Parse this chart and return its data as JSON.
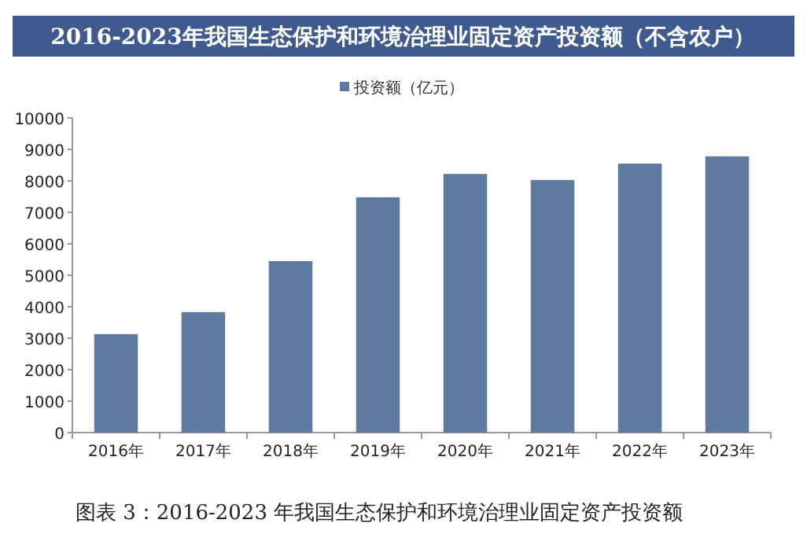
{
  "chart_data": {
    "type": "bar",
    "title": "2016-2023年我国生态保护和环境治理业固定资产投资额（不含农户）",
    "categories": [
      "2016年",
      "2017年",
      "2018年",
      "2019年",
      "2020年",
      "2021年",
      "2022年",
      "2023年"
    ],
    "series": [
      {
        "name": "投资额（亿元）",
        "color": "#5f7aa0",
        "values": [
          3130,
          3830,
          5450,
          7480,
          8220,
          8030,
          8550,
          8780
        ]
      }
    ],
    "ylim": [
      0,
      10000
    ],
    "yticks": [
      0,
      1000,
      2000,
      3000,
      4000,
      5000,
      6000,
      7000,
      8000,
      9000,
      10000
    ],
    "grid": false,
    "legend": "top",
    "annotations": [
      "图表 3：2016-2023 年我国生态保护和环境治理业固定资产投资额"
    ]
  }
}
